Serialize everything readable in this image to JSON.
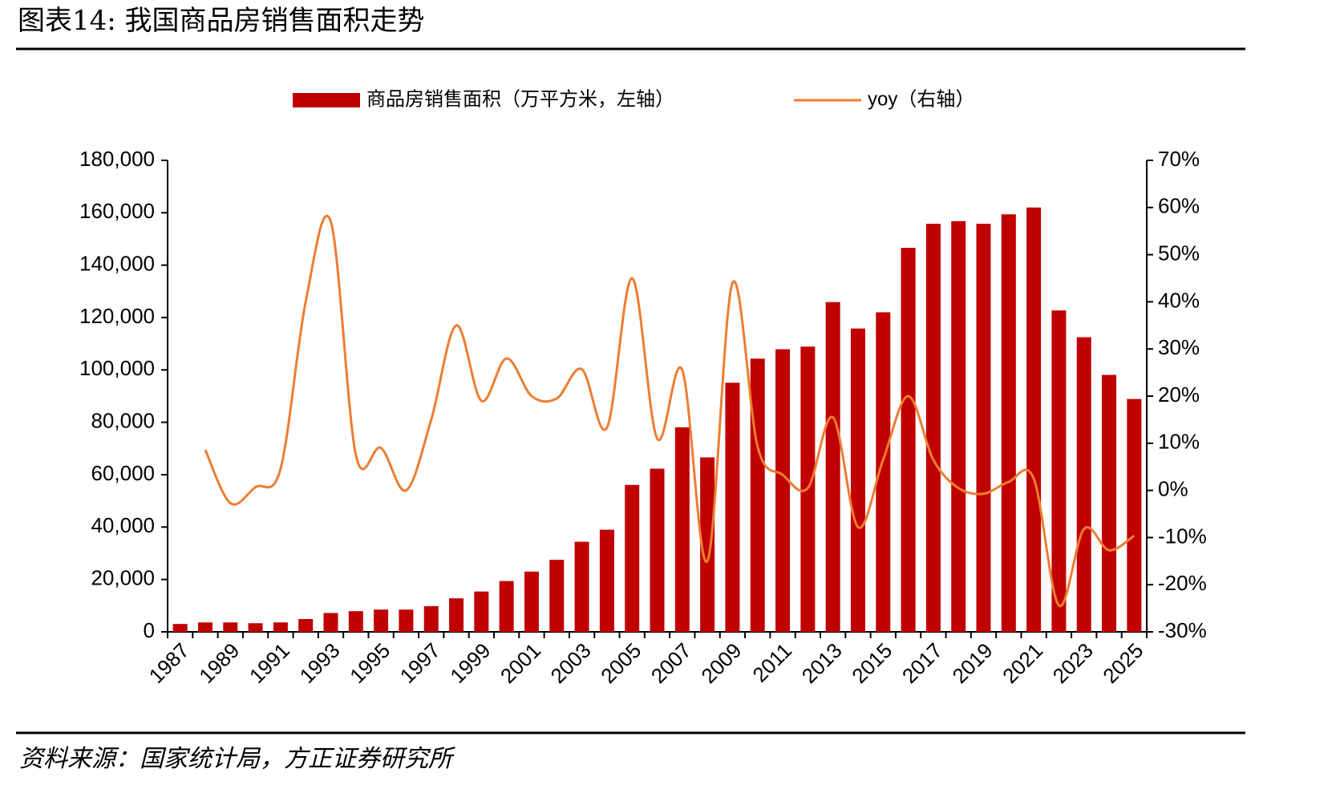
{
  "chart_data": {
    "type": "bar_line",
    "title": "图表14: 我国商品房销售面积走势",
    "source": "资料来源：国家统计局，方正证券研究所",
    "categories": [
      "1987",
      null,
      "1989",
      null,
      "1991",
      null,
      "1993",
      null,
      "1995",
      null,
      "1997",
      null,
      "1999",
      null,
      "2001",
      null,
      "2003",
      null,
      "2005",
      null,
      "2007",
      null,
      "2009",
      null,
      "2011",
      null,
      "2013",
      null,
      "2015",
      null,
      "2017",
      null,
      "2019",
      null,
      "2021",
      null,
      "2023",
      null,
      "2025"
    ],
    "series": [
      {
        "name": "商品房销售面积（万平方米，左轴）",
        "color": "#c00000",
        "type": "bar",
        "values": [
          3000,
          3600,
          3600,
          3300,
          3600,
          4900,
          7200,
          7900,
          8500,
          8500,
          9800,
          12800,
          15400,
          19400,
          23000,
          27500,
          34400,
          39000,
          56100,
          62300,
          78100,
          66600,
          95100,
          104300,
          107900,
          108900,
          125900,
          115800,
          122000,
          146600,
          155800,
          156800,
          155800,
          159400,
          162000,
          122700,
          112500,
          98100,
          88900
        ]
      },
      {
        "name": "yoy（右轴）",
        "color": "#ed7d31",
        "type": "line",
        "axis": "y2",
        "values": [
          null,
          8.6,
          -2.7,
          0.7,
          4.6,
          40,
          57,
          7.5,
          9,
          0,
          15,
          35,
          19,
          28,
          20,
          19.5,
          25.7,
          13.3,
          45,
          11,
          25.5,
          -15,
          44,
          9.3,
          3.3,
          0.5,
          15.5,
          -7.8,
          6.5,
          20,
          6.5,
          0.5,
          -0.7,
          1.8,
          2.5,
          -24.4,
          -8.2,
          -12.7,
          -9.6
        ]
      }
    ],
    "ylim": [
      0,
      180000
    ],
    "yticks": [
      0,
      {
        "value": 20000,
        "label": "20,000"
      },
      {
        "value": 40000,
        "label": "40,000"
      },
      {
        "value": 60000,
        "label": "60,000"
      },
      {
        "value": 80000,
        "label": "80,000"
      },
      {
        "value": 100000,
        "label": "100,000"
      },
      {
        "value": 120000,
        "label": "120,000"
      },
      {
        "value": 140000,
        "label": "140,000"
      },
      {
        "value": 160000,
        "label": "160,000"
      },
      {
        "value": 180000,
        "label": "180,000"
      }
    ],
    "y2lim": [
      -30,
      70
    ],
    "y2ticks": [
      {
        "value": -30,
        "label": "-30%"
      },
      {
        "value": -20,
        "label": "-20%"
      },
      {
        "value": -10,
        "label": "-10%"
      },
      {
        "value": 0,
        "label": "0%"
      },
      {
        "value": 10,
        "label": "10%"
      },
      {
        "value": 20,
        "label": "20%"
      },
      {
        "value": 30,
        "label": "30%"
      },
      {
        "value": 40,
        "label": "40%"
      },
      {
        "value": 50,
        "label": "50%"
      },
      {
        "value": 60,
        "label": "60%"
      },
      {
        "value": 70,
        "label": "70%"
      }
    ],
    "legend": "top"
  }
}
